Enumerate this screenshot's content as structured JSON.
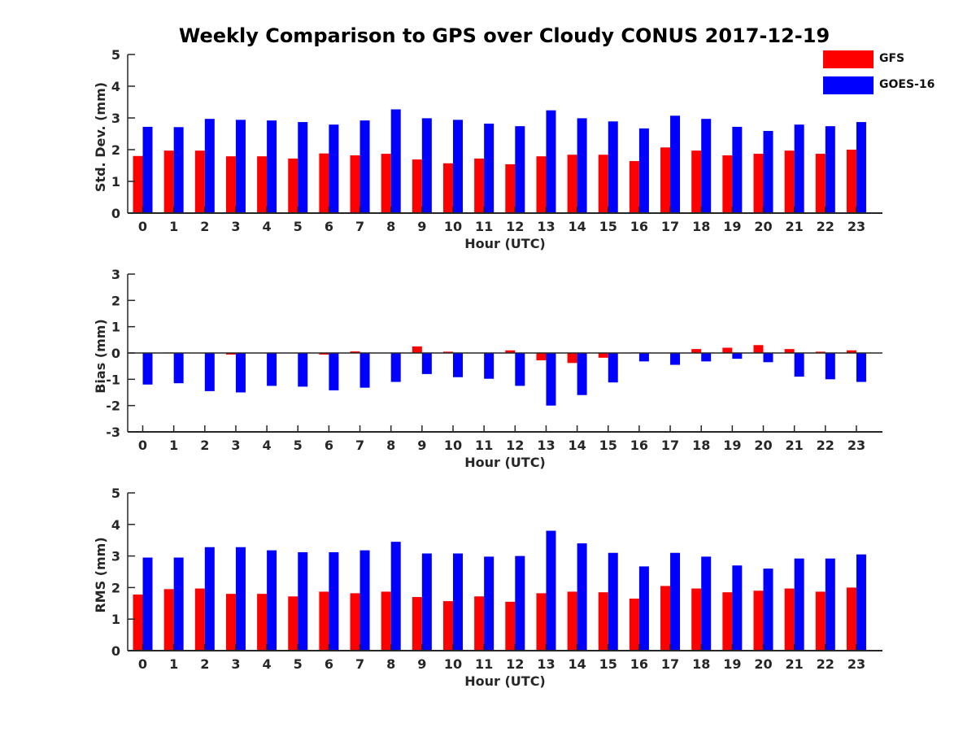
{
  "title": "Weekly Comparison to GPS over Cloudy CONUS 2017-12-19",
  "legend": [
    {
      "name": "GFS",
      "color": "#ff0000"
    },
    {
      "name": "GOES-16",
      "color": "#0000ff"
    }
  ],
  "chart_data": [
    {
      "type": "bar",
      "xlabel": "Hour (UTC)",
      "ylabel": "Std. Dev. (mm)",
      "ylim": [
        0,
        5
      ],
      "yticks": [
        0,
        1,
        2,
        3,
        4,
        5
      ],
      "categories": [
        "0",
        "1",
        "2",
        "3",
        "4",
        "5",
        "6",
        "7",
        "8",
        "9",
        "10",
        "11",
        "12",
        "13",
        "14",
        "15",
        "16",
        "17",
        "18",
        "19",
        "20",
        "21",
        "22",
        "23"
      ],
      "series": [
        {
          "name": "GFS",
          "color": "#ff0000",
          "values": [
            1.8,
            1.97,
            1.97,
            1.79,
            1.79,
            1.72,
            1.88,
            1.82,
            1.87,
            1.69,
            1.57,
            1.72,
            1.54,
            1.79,
            1.84,
            1.84,
            1.64,
            2.07,
            1.97,
            1.82,
            1.87,
            1.97,
            1.87,
            2.0
          ]
        },
        {
          "name": "GOES-16",
          "color": "#0000ff",
          "values": [
            2.72,
            2.71,
            2.97,
            2.94,
            2.92,
            2.87,
            2.79,
            2.92,
            3.27,
            2.99,
            2.94,
            2.82,
            2.74,
            3.24,
            2.99,
            2.89,
            2.67,
            3.07,
            2.97,
            2.72,
            2.59,
            2.79,
            2.74,
            2.87
          ]
        }
      ]
    },
    {
      "type": "bar",
      "xlabel": "Hour (UTC)",
      "ylabel": "Bias (mm)",
      "ylim": [
        -3,
        3
      ],
      "yticks": [
        -3,
        -2,
        -1,
        0,
        1,
        2,
        3
      ],
      "zero_line": true,
      "categories": [
        "0",
        "1",
        "2",
        "3",
        "4",
        "5",
        "6",
        "7",
        "8",
        "9",
        "10",
        "11",
        "12",
        "13",
        "14",
        "15",
        "16",
        "17",
        "18",
        "19",
        "20",
        "21",
        "22",
        "23"
      ],
      "series": [
        {
          "name": "GFS",
          "color": "#ff0000",
          "values": [
            0.0,
            0.02,
            0.0,
            -0.06,
            0.0,
            0.0,
            -0.06,
            0.06,
            0.0,
            0.25,
            0.05,
            0.0,
            0.1,
            -0.28,
            -0.38,
            -0.18,
            0.02,
            0.0,
            0.15,
            0.2,
            0.3,
            0.15,
            0.05,
            0.1
          ]
        },
        {
          "name": "GOES-16",
          "color": "#0000ff",
          "values": [
            -1.2,
            -1.15,
            -1.45,
            -1.5,
            -1.25,
            -1.28,
            -1.42,
            -1.32,
            -1.1,
            -0.8,
            -0.92,
            -0.98,
            -1.25,
            -2.0,
            -1.6,
            -1.12,
            -0.32,
            -0.45,
            -0.32,
            -0.22,
            -0.35,
            -0.9,
            -1.0,
            -1.1
          ]
        }
      ]
    },
    {
      "type": "bar",
      "xlabel": "Hour (UTC)",
      "ylabel": "RMS (mm)",
      "ylim": [
        0,
        5
      ],
      "yticks": [
        0,
        1,
        2,
        3,
        4,
        5
      ],
      "categories": [
        "0",
        "1",
        "2",
        "3",
        "4",
        "5",
        "6",
        "7",
        "8",
        "9",
        "10",
        "11",
        "12",
        "13",
        "14",
        "15",
        "16",
        "17",
        "18",
        "19",
        "20",
        "21",
        "22",
        "23"
      ],
      "series": [
        {
          "name": "GFS",
          "color": "#ff0000",
          "values": [
            1.78,
            1.95,
            1.97,
            1.8,
            1.8,
            1.72,
            1.87,
            1.82,
            1.87,
            1.7,
            1.57,
            1.72,
            1.55,
            1.82,
            1.87,
            1.85,
            1.65,
            2.05,
            1.97,
            1.85,
            1.9,
            1.97,
            1.87,
            2.0
          ]
        },
        {
          "name": "GOES-16",
          "color": "#0000ff",
          "values": [
            2.95,
            2.95,
            3.28,
            3.28,
            3.18,
            3.12,
            3.12,
            3.18,
            3.45,
            3.08,
            3.08,
            2.98,
            3.0,
            3.8,
            3.4,
            3.1,
            2.67,
            3.1,
            2.98,
            2.7,
            2.6,
            2.92,
            2.92,
            3.05
          ]
        }
      ]
    }
  ]
}
